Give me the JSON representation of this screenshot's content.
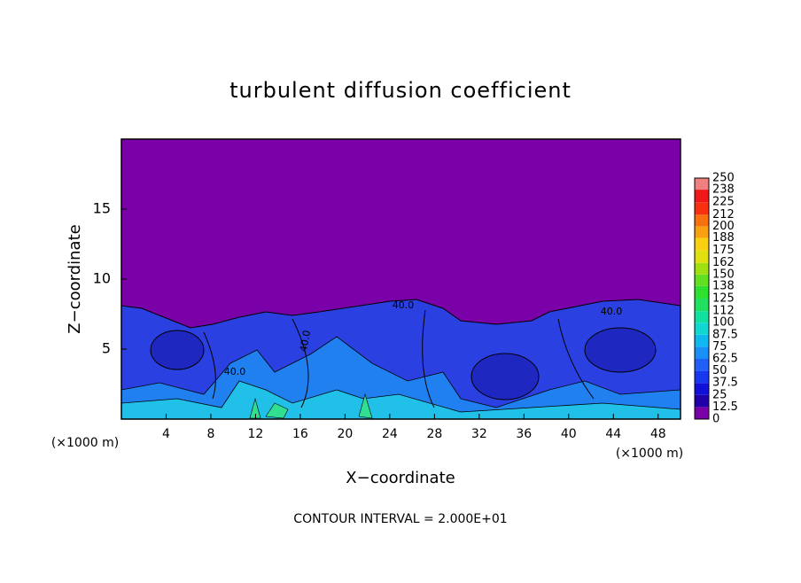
{
  "chart_data": {
    "type": "contour",
    "title": "turbulent diffusion coefficient",
    "xlabel": "X−coordinate",
    "ylabel": "Z−coordinate",
    "x_unit": "(×1000 m)",
    "footer": "CONTOUR INTERVAL = 2.000E+01",
    "xlim": [
      0,
      50
    ],
    "xticks": [
      4,
      8,
      12,
      16,
      20,
      24,
      28,
      32,
      36,
      40,
      44,
      48
    ],
    "ylim": [
      0,
      20
    ],
    "yticks": [
      5,
      10,
      15
    ],
    "contour_labels": [
      "40.0",
      "40.0",
      "40.0",
      "40.0"
    ],
    "colorbar": {
      "levels": [
        0,
        12.5,
        25,
        37.5,
        50,
        62.5,
        75,
        87.5,
        100,
        112,
        125,
        138,
        150,
        162,
        175,
        188,
        200,
        212,
        225,
        238,
        250
      ],
      "colors": [
        "#7a00a8",
        "#2000a8",
        "#1010d8",
        "#1838f0",
        "#2060f8",
        "#1890f8",
        "#10b8f0",
        "#10d8d0",
        "#10e0a0",
        "#20e060",
        "#30e030",
        "#60e020",
        "#a0e010",
        "#e0e010",
        "#f8d010",
        "#f8a010",
        "#f87010",
        "#f83010",
        "#f01818",
        "#f08080"
      ]
    }
  }
}
